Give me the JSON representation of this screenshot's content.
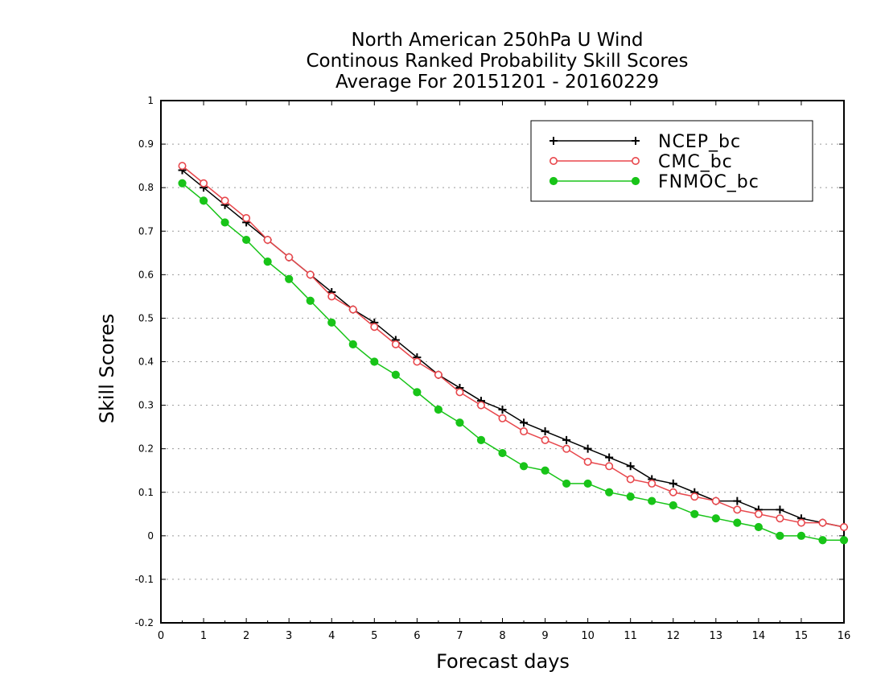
{
  "chart_data": {
    "type": "line",
    "title": [
      "North American 250hPa U Wind",
      "Continous Ranked Probability Skill Scores",
      "Average For 20151201 - 20160229"
    ],
    "xlabel": "Forecast days",
    "ylabel": "Skill Scores",
    "xlim": [
      0,
      16
    ],
    "ylim": [
      -0.2,
      1
    ],
    "x_ticks": [
      "0",
      "1",
      "2",
      "3",
      "4",
      "5",
      "6",
      "7",
      "8",
      "9",
      "10",
      "11",
      "12",
      "13",
      "14",
      "15",
      "16"
    ],
    "y_ticks": [
      "-0.2",
      "-0.1",
      "0",
      "0.1",
      "0.2",
      "0.3",
      "0.4",
      "0.5",
      "0.6",
      "0.7",
      "0.8",
      "0.9",
      "1"
    ],
    "grid": true,
    "legend_position": "top-right",
    "x": [
      0.5,
      1,
      1.5,
      2,
      2.5,
      3,
      3.5,
      4,
      4.5,
      5,
      5.5,
      6,
      6.5,
      7,
      7.5,
      8,
      8.5,
      9,
      9.5,
      10,
      10.5,
      11,
      11.5,
      12,
      12.5,
      13,
      13.5,
      14,
      14.5,
      15,
      15.5,
      16
    ],
    "series": [
      {
        "name": "NCEP_bc",
        "color": "#000000",
        "marker": "plus",
        "values": [
          0.84,
          0.8,
          0.76,
          0.72,
          0.68,
          0.64,
          0.6,
          0.56,
          0.52,
          0.49,
          0.45,
          0.41,
          0.37,
          0.34,
          0.31,
          0.29,
          0.26,
          0.24,
          0.22,
          0.2,
          0.18,
          0.16,
          0.13,
          0.12,
          0.1,
          0.08,
          0.08,
          0.06,
          0.06,
          0.04,
          0.03,
          0.02
        ]
      },
      {
        "name": "CMC_bc",
        "color": "#e8474c",
        "marker": "open-circle",
        "values": [
          0.85,
          0.81,
          0.77,
          0.73,
          0.68,
          0.64,
          0.6,
          0.55,
          0.52,
          0.48,
          0.44,
          0.4,
          0.37,
          0.33,
          0.3,
          0.27,
          0.24,
          0.22,
          0.2,
          0.17,
          0.16,
          0.13,
          0.12,
          0.1,
          0.09,
          0.08,
          0.06,
          0.05,
          0.04,
          0.03,
          0.03,
          0.02
        ]
      },
      {
        "name": "FNMOC_bc",
        "color": "#18c418",
        "marker": "filled-circle",
        "values": [
          0.81,
          0.77,
          0.72,
          0.68,
          0.63,
          0.59,
          0.54,
          0.49,
          0.44,
          0.4,
          0.37,
          0.33,
          0.29,
          0.26,
          0.22,
          0.19,
          0.16,
          0.15,
          0.12,
          0.12,
          0.1,
          0.09,
          0.08,
          0.07,
          0.05,
          0.04,
          0.03,
          0.02,
          0.0,
          0.0,
          -0.01,
          -0.01
        ]
      }
    ]
  }
}
